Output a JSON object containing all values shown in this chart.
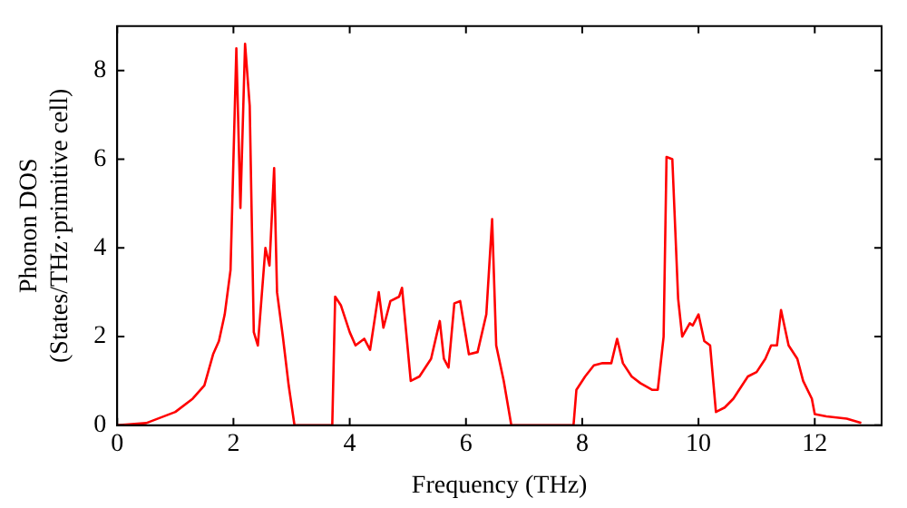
{
  "chart_data": {
    "type": "line",
    "xlabel": "Frequency (THz)",
    "ylabel": "Phonon DOS\n(States/THz·primitive cell)",
    "xlim": [
      0,
      13.15
    ],
    "ylim": [
      0,
      9
    ],
    "xticks": [
      0,
      2,
      4,
      6,
      8,
      10,
      12
    ],
    "yticks": [
      0,
      2,
      4,
      6,
      8
    ],
    "grid": false,
    "legend": false,
    "marker": "none",
    "line_style": "solid",
    "series": [
      {
        "color": "#ff0000",
        "x": [
          0,
          0.5,
          1.0,
          1.3,
          1.5,
          1.65,
          1.75,
          1.85,
          1.95,
          2.05,
          2.12,
          2.2,
          2.28,
          2.35,
          2.42,
          2.55,
          2.62,
          2.7,
          2.75,
          2.85,
          2.95,
          3.05,
          3.7,
          3.75,
          3.85,
          4.0,
          4.1,
          4.25,
          4.35,
          4.5,
          4.58,
          4.7,
          4.85,
          4.9,
          5.05,
          5.2,
          5.4,
          5.55,
          5.62,
          5.7,
          5.8,
          5.9,
          6.0,
          6.05,
          6.2,
          6.35,
          6.45,
          6.52,
          6.65,
          6.78,
          7.85,
          7.9,
          8.05,
          8.2,
          8.35,
          8.5,
          8.6,
          8.7,
          8.85,
          9.0,
          9.2,
          9.3,
          9.4,
          9.45,
          9.55,
          9.65,
          9.72,
          9.85,
          9.9,
          10.0,
          10.1,
          10.2,
          10.3,
          10.45,
          10.6,
          10.75,
          10.85,
          11.0,
          11.15,
          11.25,
          11.35,
          11.42,
          11.55,
          11.7,
          11.8,
          11.95,
          12.0,
          12.2,
          12.55,
          12.8
        ],
        "values": [
          0,
          0.05,
          0.3,
          0.6,
          0.9,
          1.6,
          1.9,
          2.5,
          3.5,
          8.5,
          4.9,
          8.6,
          7.2,
          2.1,
          1.8,
          4.0,
          3.6,
          5.8,
          3.0,
          2.0,
          0.9,
          0,
          0,
          2.9,
          2.7,
          2.1,
          1.8,
          1.95,
          1.7,
          3.0,
          2.2,
          2.8,
          2.9,
          3.1,
          1.0,
          1.1,
          1.5,
          2.35,
          1.5,
          1.3,
          2.75,
          2.8,
          2.0,
          1.6,
          1.65,
          2.5,
          4.65,
          1.8,
          1.0,
          0,
          0,
          0.8,
          1.1,
          1.35,
          1.4,
          1.4,
          1.95,
          1.4,
          1.1,
          0.95,
          0.8,
          0.8,
          2.0,
          6.05,
          6.0,
          2.85,
          2.0,
          2.3,
          2.25,
          2.5,
          1.9,
          1.8,
          0.3,
          0.4,
          0.6,
          0.9,
          1.1,
          1.2,
          1.5,
          1.8,
          1.8,
          2.6,
          1.8,
          1.5,
          1.0,
          0.6,
          0.25,
          0.2,
          0.15,
          0.05
        ]
      }
    ]
  }
}
